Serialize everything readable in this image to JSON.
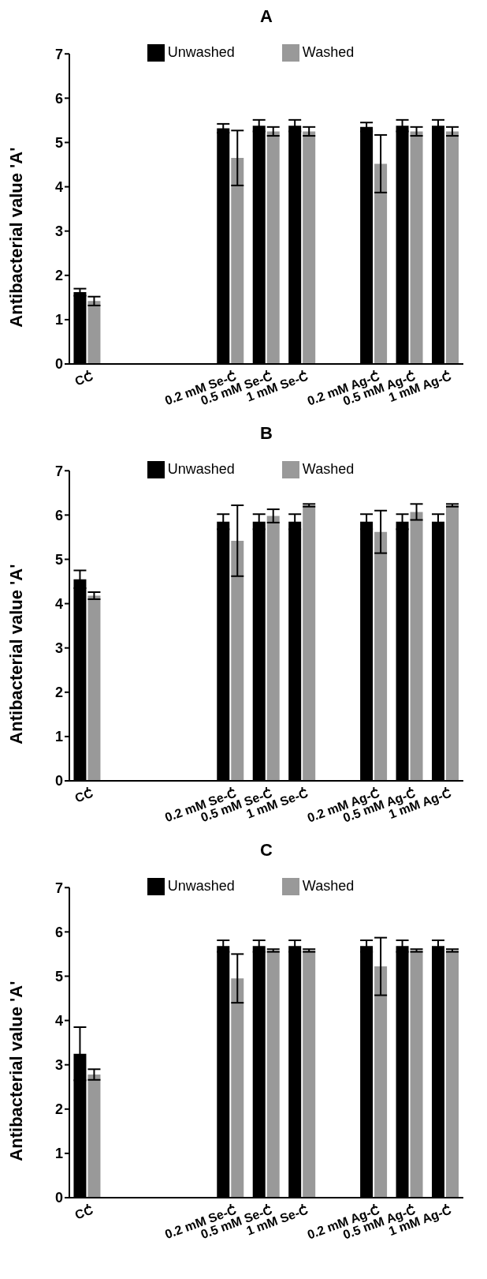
{
  "chart_data": [
    {
      "type": "bar",
      "title": "A",
      "ylabel": "Antibacterial value 'A'",
      "categories": [
        "CC",
        null,
        null,
        null,
        "0.2 mM Se-C",
        "0.5 mM Se-C",
        "1 mM Se-C",
        null,
        "0.2 mM Ag-C",
        "0.5 mM Ag-C",
        "1 mM Ag-C"
      ],
      "ylim": [
        0,
        7
      ],
      "yticks": [
        0,
        1,
        2,
        3,
        4,
        5,
        6,
        7
      ],
      "legend": "top",
      "grid": false,
      "series": [
        {
          "name": "Unwashed",
          "color": "#000000",
          "values": [
            1.62,
            null,
            null,
            null,
            5.32,
            5.38,
            5.38,
            null,
            5.35,
            5.38,
            5.38
          ],
          "errors": [
            0.08,
            null,
            null,
            null,
            0.1,
            0.13,
            0.13,
            null,
            0.1,
            0.13,
            0.13
          ]
        },
        {
          "name": "Washed",
          "color": "#999999",
          "values": [
            1.42,
            null,
            null,
            null,
            4.65,
            5.25,
            5.25,
            null,
            4.52,
            5.25,
            5.25
          ],
          "errors": [
            0.1,
            null,
            null,
            null,
            0.62,
            0.1,
            0.1,
            null,
            0.65,
            0.1,
            0.1
          ]
        }
      ]
    },
    {
      "type": "bar",
      "title": "B",
      "ylabel": "Antibacterial value 'A'",
      "categories": [
        "CC",
        null,
        null,
        null,
        "0.2 mM Se-C",
        "0.5 mM Se-C",
        "1 mM Se-C",
        null,
        "0.2 mM Ag-C",
        "0.5 mM Ag-C",
        "1 mM Ag-C"
      ],
      "ylim": [
        0,
        7
      ],
      "yticks": [
        0,
        1,
        2,
        3,
        4,
        5,
        6,
        7
      ],
      "legend": "top",
      "grid": false,
      "series": [
        {
          "name": "Unwashed",
          "color": "#000000",
          "values": [
            4.55,
            null,
            null,
            null,
            5.85,
            5.85,
            5.85,
            null,
            5.85,
            5.85,
            5.85
          ],
          "errors": [
            0.2,
            null,
            null,
            null,
            0.17,
            0.17,
            0.17,
            null,
            0.17,
            0.17,
            0.17
          ]
        },
        {
          "name": "Washed",
          "color": "#999999",
          "values": [
            4.18,
            null,
            null,
            null,
            5.42,
            5.98,
            6.22,
            null,
            5.62,
            6.07,
            6.22
          ],
          "errors": [
            0.08,
            null,
            null,
            null,
            0.8,
            0.15,
            0.03,
            null,
            0.48,
            0.18,
            0.03
          ]
        }
      ]
    },
    {
      "type": "bar",
      "title": "C",
      "ylabel": "Antibacterial value 'A'",
      "categories": [
        "CC",
        null,
        null,
        null,
        "0.2 mM Se-C",
        "0.5 mM Se-C",
        "1 mM Se-C",
        null,
        "0.2 mM Ag-C",
        "0.5 mM Ag-C",
        "1 mM Ag-C"
      ],
      "ylim": [
        0,
        7
      ],
      "yticks": [
        0,
        1,
        2,
        3,
        4,
        5,
        6,
        7
      ],
      "legend": "top",
      "grid": false,
      "series": [
        {
          "name": "Unwashed",
          "color": "#000000",
          "values": [
            3.25,
            null,
            null,
            null,
            5.68,
            5.68,
            5.68,
            null,
            5.68,
            5.68,
            5.68
          ],
          "errors": [
            0.6,
            null,
            null,
            null,
            0.13,
            0.13,
            0.13,
            null,
            0.13,
            0.13,
            0.13
          ]
        },
        {
          "name": "Washed",
          "color": "#999999",
          "values": [
            2.78,
            null,
            null,
            null,
            4.95,
            5.58,
            5.58,
            null,
            5.22,
            5.58,
            5.58
          ],
          "errors": [
            0.12,
            null,
            null,
            null,
            0.55,
            0.03,
            0.03,
            null,
            0.65,
            0.03,
            0.03
          ]
        }
      ]
    }
  ]
}
